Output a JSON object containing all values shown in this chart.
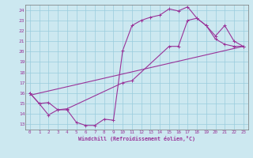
{
  "xlabel": "Windchill (Refroidissement éolien,°C)",
  "bg_color": "#cce8f0",
  "grid_color": "#99ccdd",
  "line_color": "#993399",
  "spine_color": "#777777",
  "xlim": [
    -0.5,
    23.5
  ],
  "ylim": [
    12.5,
    24.5
  ],
  "xticks": [
    0,
    1,
    2,
    3,
    4,
    5,
    6,
    7,
    8,
    9,
    10,
    11,
    12,
    13,
    14,
    15,
    16,
    17,
    18,
    19,
    20,
    21,
    22,
    23
  ],
  "yticks": [
    13,
    14,
    15,
    16,
    17,
    18,
    19,
    20,
    21,
    22,
    23,
    24
  ],
  "line1_x": [
    0,
    1,
    2,
    3,
    4,
    5,
    6,
    7,
    8,
    9,
    10,
    11,
    12,
    13,
    14,
    15,
    16,
    17,
    18,
    19,
    20,
    21,
    22,
    23
  ],
  "line1_y": [
    16.0,
    15.0,
    13.9,
    14.4,
    14.4,
    13.2,
    12.9,
    12.9,
    13.5,
    13.4,
    20.1,
    22.5,
    23.0,
    23.3,
    23.5,
    24.1,
    23.9,
    24.3,
    23.2,
    22.5,
    21.2,
    20.7,
    20.5,
    20.5
  ],
  "line2_x": [
    0,
    1,
    2,
    3,
    4,
    10,
    11,
    15,
    16,
    17,
    18,
    19,
    20,
    21,
    22,
    23
  ],
  "line2_y": [
    16.0,
    15.0,
    15.1,
    14.4,
    14.5,
    17.0,
    17.2,
    20.5,
    20.5,
    23.0,
    23.2,
    22.5,
    21.5,
    22.5,
    21.0,
    20.5
  ],
  "line3_x": [
    0,
    23
  ],
  "line3_y": [
    15.8,
    20.5
  ]
}
